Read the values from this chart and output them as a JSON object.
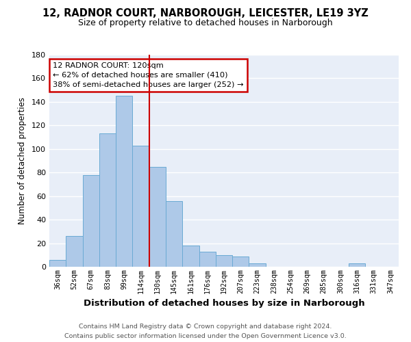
{
  "title": "12, RADNOR COURT, NARBOROUGH, LEICESTER, LE19 3YZ",
  "subtitle": "Size of property relative to detached houses in Narborough",
  "xlabel": "Distribution of detached houses by size in Narborough",
  "ylabel": "Number of detached properties",
  "bar_labels": [
    "36sqm",
    "52sqm",
    "67sqm",
    "83sqm",
    "99sqm",
    "114sqm",
    "130sqm",
    "145sqm",
    "161sqm",
    "176sqm",
    "192sqm",
    "207sqm",
    "223sqm",
    "238sqm",
    "254sqm",
    "269sqm",
    "285sqm",
    "300sqm",
    "316sqm",
    "331sqm",
    "347sqm"
  ],
  "bar_values": [
    6,
    26,
    78,
    113,
    145,
    103,
    85,
    56,
    18,
    13,
    10,
    9,
    3,
    0,
    0,
    0,
    0,
    0,
    3,
    0,
    0
  ],
  "bar_color": "#aec9e8",
  "bar_edge_color": "#6aaad4",
  "vline_x": 5.5,
  "vline_color": "#cc0000",
  "ylim": [
    0,
    180
  ],
  "yticks": [
    0,
    20,
    40,
    60,
    80,
    100,
    120,
    140,
    160,
    180
  ],
  "annotation_title": "12 RADNOR COURT: 120sqm",
  "annotation_line1": "← 62% of detached houses are smaller (410)",
  "annotation_line2": "38% of semi-detached houses are larger (252) →",
  "footer_line1": "Contains HM Land Registry data © Crown copyright and database right 2024.",
  "footer_line2": "Contains public sector information licensed under the Open Government Licence v3.0.",
  "background_color": "#ffffff",
  "plot_bg_color": "#e8eef8"
}
